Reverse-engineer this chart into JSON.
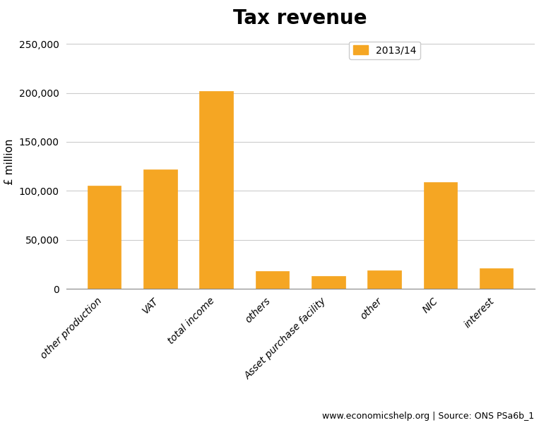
{
  "title": "Tax revenue",
  "categories": [
    "other production",
    "VAT",
    "total income",
    "others",
    "Asset purchase facility",
    "other",
    "NIC",
    "interest"
  ],
  "values": [
    105000,
    122000,
    202000,
    18000,
    13000,
    19000,
    109000,
    21000
  ],
  "bar_color": "#F5A623",
  "bar_edgecolor": "#F5A623",
  "ylabel": "£ million",
  "ylim": [
    0,
    260000
  ],
  "yticks": [
    0,
    50000,
    100000,
    150000,
    200000,
    250000
  ],
  "legend_label": "2013/14",
  "footnote": "www.economicshelp.org | Source: ONS PSa6b_1",
  "background_color": "#FFFFFF",
  "grid_color": "#CCCCCC",
  "title_fontsize": 20,
  "ylabel_fontsize": 11,
  "tick_fontsize": 10,
  "legend_fontsize": 10,
  "footnote_fontsize": 9
}
